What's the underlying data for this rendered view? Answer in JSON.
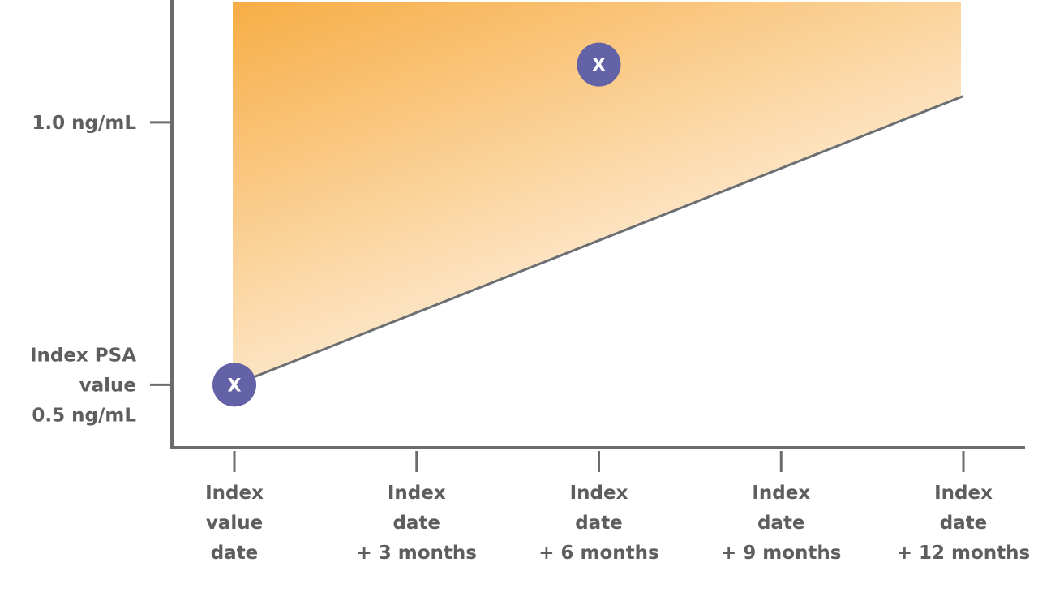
{
  "chart_data": {
    "type": "line",
    "title": "",
    "xlabel": "",
    "ylabel": "",
    "x_categories": [
      [
        "Index",
        "value",
        "date"
      ],
      [
        "Index",
        "date",
        "+ 3 months"
      ],
      [
        "Index",
        "date",
        "+ 6 months"
      ],
      [
        "Index",
        "date",
        "+ 9 months"
      ],
      [
        "Index",
        "date",
        "+ 12 months"
      ]
    ],
    "x_months": [
      0,
      3,
      6,
      9,
      12
    ],
    "y_ticks": [
      {
        "value": 1.0,
        "lines": [
          "1.0 ng/mL"
        ]
      },
      {
        "value": 0.5,
        "lines": [
          "Index PSA",
          "value",
          "0.5 ng/mL"
        ]
      }
    ],
    "ylim": [
      0.38,
      1.23
    ],
    "xlim": [
      0,
      12
    ],
    "series": [
      {
        "type": "line",
        "points": [
          {
            "x": 0,
            "y": 0.5
          },
          {
            "x": 12,
            "y": 1.05
          }
        ]
      }
    ],
    "shaded_region": {
      "description_free": true,
      "lower_bound": [
        {
          "x": 0,
          "y": 0.5
        },
        {
          "x": 12,
          "y": 1.05
        }
      ],
      "upper_y": 1.23
    },
    "markers": [
      {
        "x": 0,
        "y": 0.5,
        "label": "X"
      },
      {
        "x": 6,
        "y": 1.11,
        "label": "X"
      }
    ],
    "grid": false,
    "legend": "none",
    "colors": {
      "axis": "#6b6b6b",
      "line": "#6b6e73",
      "text": "#5e5e5e",
      "marker": "#6462a6",
      "marker_text": "#ffffff",
      "fill_strong": "#f7ad45",
      "fill_weak": "#ffffff"
    }
  }
}
